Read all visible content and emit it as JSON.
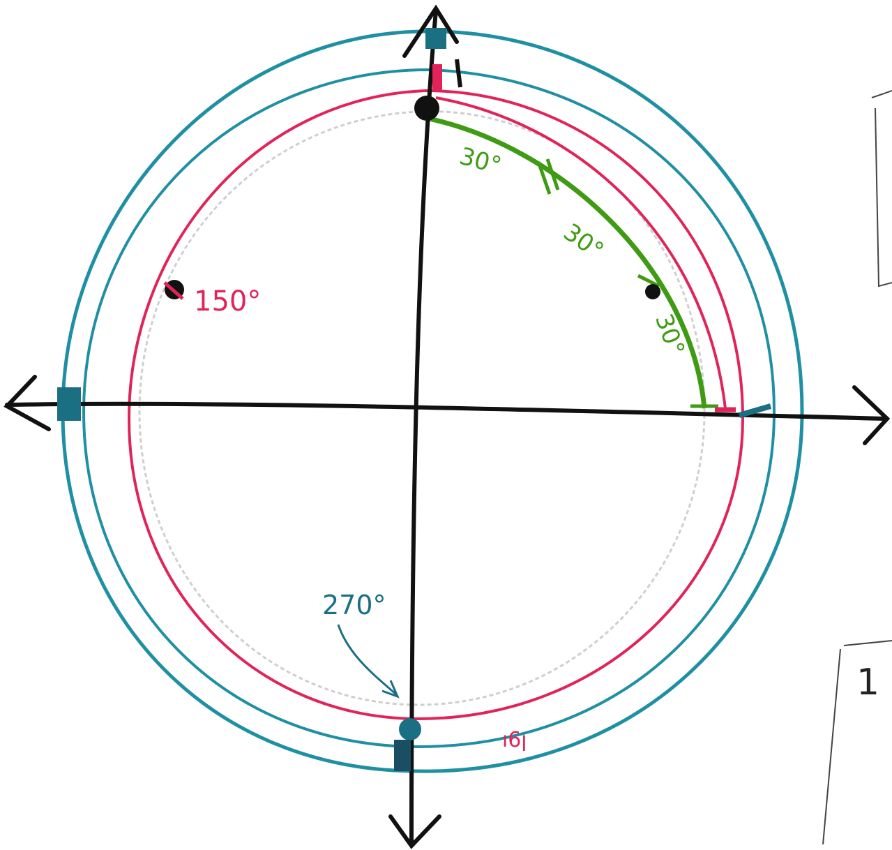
{
  "labels": {
    "angle_150": "150°",
    "angle_270": "270°",
    "arc_step_1": "30°",
    "arc_step_2": "30°",
    "arc_step_3": "30°",
    "edge_fragment": "1",
    "red_curve_note": "ן6ו"
  },
  "colors": {
    "axes": "#111111",
    "green_arc": "#3f9b14",
    "red_circle": "#e0245a",
    "teal_circle": "#1f8fa3",
    "pencil_circle": "#c8c8c8",
    "green_text": "#3f9b14",
    "red_text": "#e0245a",
    "teal_text": "#1a6f83"
  }
}
